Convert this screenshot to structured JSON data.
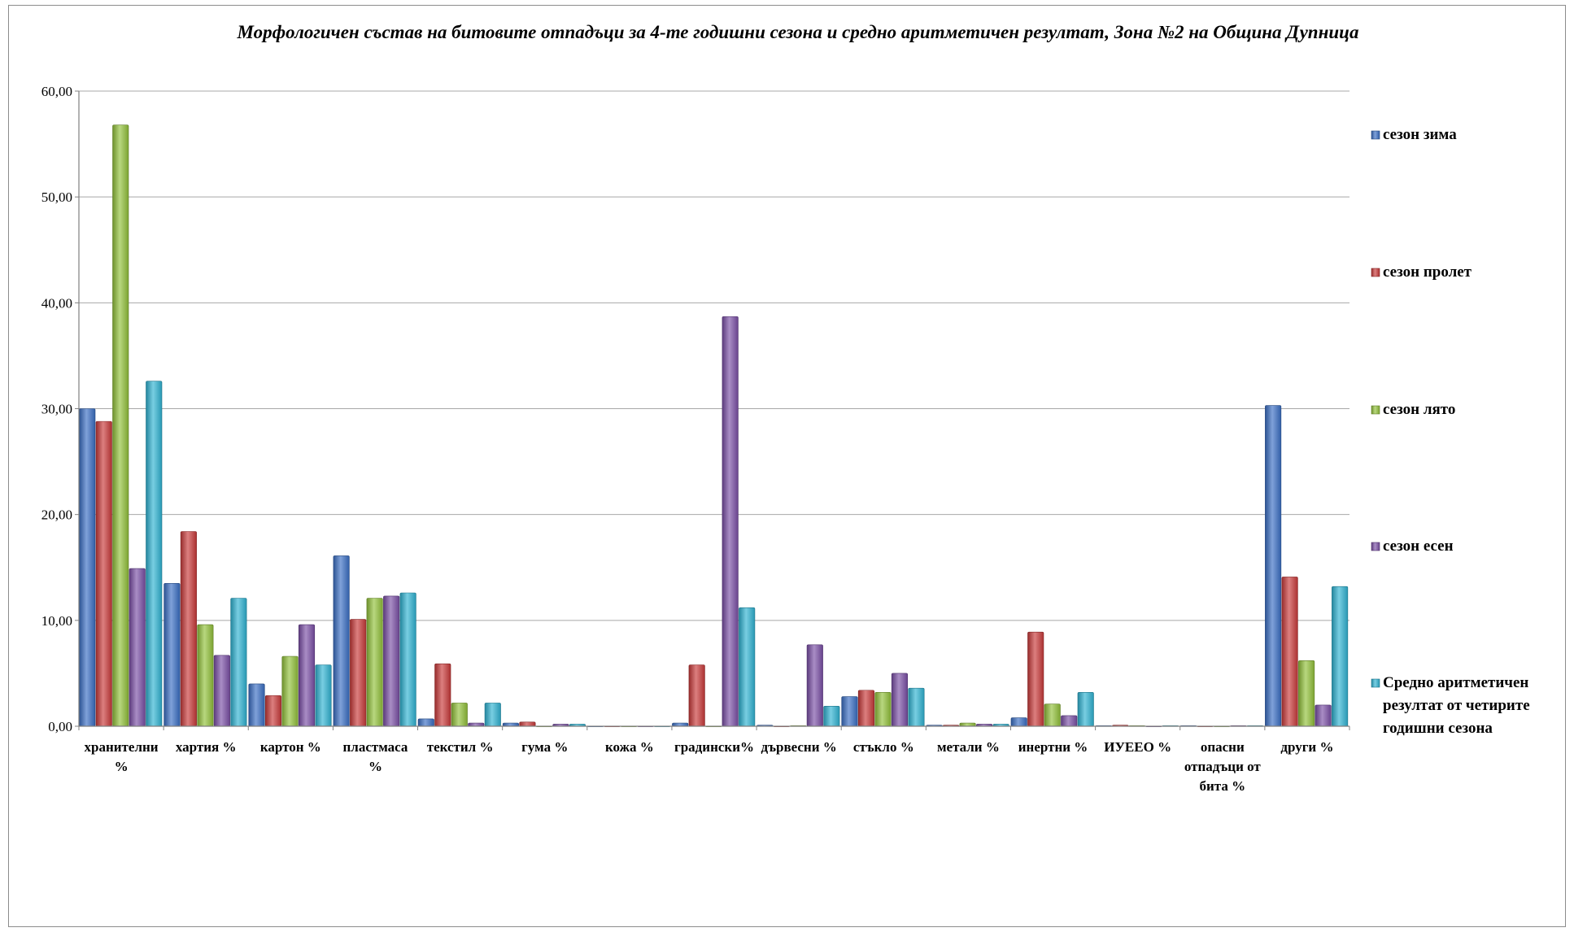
{
  "chart_data": {
    "type": "bar",
    "title": "Морфологичен състав на битовите отпадъци за 4-те годишни сезона и средно аритметичен резултат, Зона №2 на Община Дупница",
    "xlabel": "",
    "ylabel": "",
    "ylim": [
      0,
      60
    ],
    "yticks": [
      "0,00",
      "10,00",
      "20,00",
      "30,00",
      "40,00",
      "50,00",
      "60,00"
    ],
    "grid": true,
    "legend_position": "right",
    "categories": [
      [
        "хранителни",
        "%"
      ],
      [
        "хартия %"
      ],
      [
        "картон %"
      ],
      [
        "пластмаса",
        "%"
      ],
      [
        "текстил %"
      ],
      [
        "гума %"
      ],
      [
        "кожа %"
      ],
      [
        "градински%"
      ],
      [
        "дървесни %"
      ],
      [
        "стъкло %"
      ],
      [
        "метали %"
      ],
      [
        "инертни %"
      ],
      [
        "ИУЕЕО %"
      ],
      [
        "опасни",
        "отпадъци от",
        "бита %"
      ],
      [
        "други %"
      ]
    ],
    "series": [
      {
        "name": "сезон зима",
        "color": "#3a6fc4",
        "values": [
          30.0,
          13.5,
          4.0,
          16.1,
          0.7,
          0.3,
          0.0,
          0.3,
          0.1,
          2.8,
          0.1,
          0.8,
          0.05,
          0.05,
          30.3
        ]
      },
      {
        "name": "сезон пролет",
        "color": "#c93a3a",
        "values": [
          28.8,
          18.4,
          2.9,
          10.1,
          5.9,
          0.4,
          0.0,
          5.8,
          0.0,
          3.4,
          0.1,
          8.9,
          0.1,
          0.0,
          14.1
        ]
      },
      {
        "name": "сезон лято",
        "color": "#92c13a",
        "values": [
          56.8,
          9.6,
          6.6,
          12.1,
          2.2,
          0.0,
          0.0,
          0.0,
          0.05,
          3.2,
          0.3,
          2.1,
          0.05,
          0.0,
          6.2
        ]
      },
      {
        "name": "сезон есен",
        "color": "#7a4fa6",
        "values": [
          14.9,
          6.7,
          9.6,
          12.3,
          0.3,
          0.2,
          0.0,
          38.7,
          7.7,
          5.0,
          0.2,
          1.0,
          0.0,
          0.05,
          2.0
        ]
      },
      {
        "name": [
          "Средно аритметичен",
          "резултат  от  четирите",
          "годишни сезона"
        ],
        "color": "#2fb3d2",
        "values": [
          32.6,
          12.1,
          5.8,
          12.6,
          2.2,
          0.2,
          0.0,
          11.2,
          1.9,
          3.6,
          0.2,
          3.2,
          0.05,
          0.05,
          13.2
        ]
      }
    ]
  }
}
